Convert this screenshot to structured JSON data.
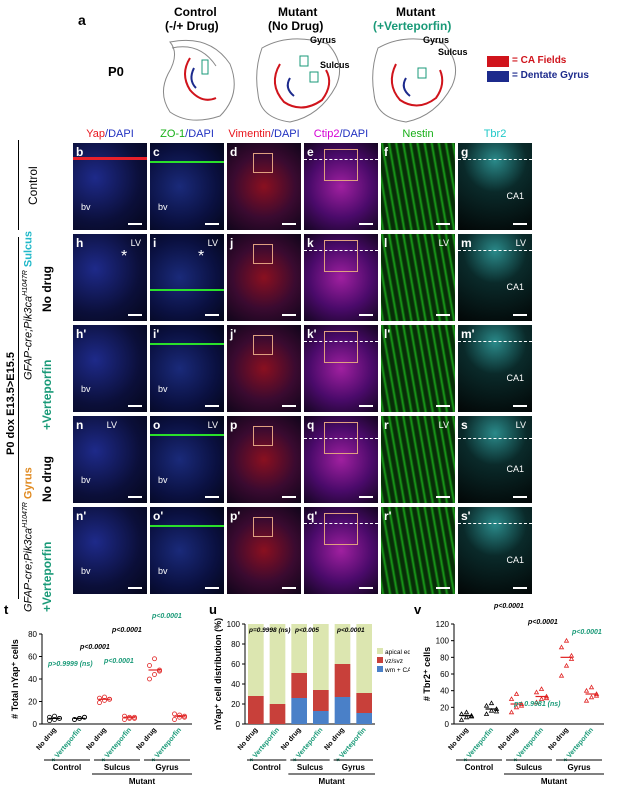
{
  "panel_letter_a": "a",
  "schematic": {
    "stage": "P0",
    "control_title": "Control",
    "control_sub": "(-/+ Drug)",
    "mutant_nodrug_title": "Mutant",
    "mutant_nodrug_sub": "(No Drug)",
    "mutant_vp_title": "Mutant",
    "mutant_vp_sub": "(+Verteporfin)",
    "gyrus": "Gyrus",
    "sulcus": "Sulcus",
    "gyrus2": "Gyrus",
    "sulcus2": "Sulcus",
    "legend_ca": "= CA Fields",
    "legend_dg": "= Dentate Gyrus",
    "colors": {
      "ca": "#d0141c",
      "dg": "#1c2a8c",
      "verteporfin": "#1a9a78"
    }
  },
  "columns": [
    {
      "a": "Yap",
      "b": "/DAPI",
      "ca": "#e8141c"
    },
    {
      "a": "ZO-1",
      "b": "/DAPI",
      "ca": "#18b018"
    },
    {
      "a": "Vimentin",
      "b": "/DAPI",
      "ca": "#e8141c"
    },
    {
      "a": "Ctip2",
      "b": "/DAPI",
      "ca": "#d400d4"
    },
    {
      "a": "Nestin",
      "b": "",
      "ca": "#18b018"
    },
    {
      "a": "Tbr2",
      "b": "",
      "ca": "#20c8c8"
    }
  ],
  "row_labels": {
    "control": "Control",
    "sulcus_nodrug": "No drug",
    "sulcus_vp": "+Verteporfin",
    "gyrus_nodrug": "No drug",
    "gyrus_vp": "+Verteporfin",
    "genotype1_a": "GFAP-cre;Pik3ca",
    "genotype1_sup": "H1047R",
    "genotype1_region": " Sulcus",
    "genotype2_a": "GFAP-cre;Pik3ca",
    "genotype2_sup": "H1047R",
    "genotype2_region": " Gyrus",
    "treatment": "P0 dox E13.5>E15.5"
  },
  "panels": {
    "r0": [
      "b",
      "c",
      "d",
      "e",
      "f",
      "g"
    ],
    "r1": [
      "h",
      "i",
      "j",
      "k",
      "l",
      "m"
    ],
    "r2": [
      "h'",
      "i'",
      "j'",
      "k'",
      "l'",
      "m'"
    ],
    "r3": [
      "n",
      "o",
      "p",
      "q",
      "r",
      "s"
    ],
    "r4": [
      "n'",
      "o'",
      "p'",
      "q'",
      "r'",
      "s'"
    ]
  },
  "panel_text": {
    "bv": "bv",
    "lv": "LV",
    "ca1": "CA1",
    "star": "*"
  },
  "chart_t": {
    "letter": "t",
    "ylabel": "# Total nYap⁺ cells",
    "yticks": [
      "0",
      "20",
      "40",
      "60",
      "80"
    ],
    "groups": [
      "Control",
      "Sulcus",
      "Gyrus"
    ],
    "cond": [
      "No drug",
      "+ Verteporfin"
    ],
    "mutant": "Mutant",
    "stats": {
      "s1": "p>0.9999 (ns)",
      "s2": "p<0.0001",
      "s3": "p<0.0001",
      "s4": "p<0.0001",
      "s5": "p<0.0001"
    }
  },
  "chart_u": {
    "letter": "u",
    "ylabel": "nYap⁺ cell distribution (%)",
    "yticks": [
      "0",
      "20",
      "40",
      "60",
      "80",
      "100"
    ],
    "stats": {
      "s1": "p=0.9998 (ns)",
      "s2": "p<0.005",
      "s3": "p<0.0001"
    },
    "legend": [
      "apical edge",
      "vz/svz",
      "wm + CA1 PL"
    ],
    "groups": [
      "Control",
      "Sulcus",
      "Gyrus"
    ],
    "cond": [
      "No drug",
      "+ Verteporfin"
    ],
    "mutant": "Mutant"
  },
  "chart_v": {
    "letter": "v",
    "ylabel": "# Tbr2⁺ cells",
    "yticks": [
      "0",
      "20",
      "40",
      "60",
      "80",
      "100",
      "120"
    ],
    "stats": {
      "s1": "p<0.0001",
      "s2": "p<0.0001",
      "s3": "p<0.0001",
      "s4": "p= 0.9981 (ns)"
    },
    "groups": [
      "Control",
      "Sulcus",
      "Gyrus"
    ],
    "cond": [
      "No drug",
      "+ Verteporfin"
    ],
    "mutant": "Mutant"
  },
  "chart_data": [
    {
      "type": "scatter",
      "title": "",
      "ylabel": "# Total nYap⁺ cells",
      "ylim": [
        0,
        80
      ],
      "categories": [
        "Control No drug",
        "Control +Verteporfin",
        "Sulcus No drug",
        "Sulcus +Verteporfin",
        "Gyrus No drug",
        "Gyrus +Verteporfin"
      ],
      "means": [
        5,
        5,
        22,
        6,
        48,
        7
      ],
      "points": [
        [
          3,
          4,
          5,
          6,
          7,
          5
        ],
        [
          4,
          5,
          6,
          4,
          5,
          6
        ],
        [
          19,
          21,
          22,
          23,
          24,
          22
        ],
        [
          4,
          5,
          6,
          7,
          6,
          5
        ],
        [
          40,
          44,
          48,
          52,
          58,
          47
        ],
        [
          4,
          6,
          7,
          9,
          8,
          6
        ]
      ]
    },
    {
      "type": "bar",
      "title": "",
      "ylabel": "nYap⁺ cell distribution (%)",
      "ylim": [
        0,
        100
      ],
      "categories": [
        "Control No drug",
        "Control +Verteporfin",
        "Sulcus No drug",
        "Sulcus +Verteporfin",
        "Gyrus No drug",
        "Gyrus +Verteporfin"
      ],
      "series": [
        {
          "name": "wm + CA1 PL",
          "values": [
            0,
            0,
            26,
            13,
            27,
            11
          ]
        },
        {
          "name": "vz/svz",
          "values": [
            28,
            20,
            25,
            21,
            33,
            20
          ]
        },
        {
          "name": "apical edge",
          "values": [
            72,
            80,
            49,
            66,
            40,
            69
          ]
        }
      ]
    },
    {
      "type": "scatter",
      "title": "",
      "ylabel": "# Tbr2⁺ cells",
      "ylim": [
        0,
        120
      ],
      "categories": [
        "Control No drug",
        "Control +Verteporfin",
        "Sulcus No drug",
        "Sulcus +Verteporfin",
        "Gyrus No drug",
        "Gyrus +Verteporfin"
      ],
      "means": [
        10,
        18,
        24,
        33,
        80,
        36
      ],
      "points": [
        [
          5,
          8,
          10,
          12,
          14,
          9
        ],
        [
          12,
          16,
          18,
          22,
          25,
          15
        ],
        [
          14,
          20,
          24,
          30,
          36,
          22
        ],
        [
          26,
          30,
          33,
          38,
          42,
          31
        ],
        [
          58,
          70,
          82,
          92,
          100,
          78
        ],
        [
          28,
          32,
          36,
          40,
          44,
          34
        ]
      ]
    }
  ]
}
